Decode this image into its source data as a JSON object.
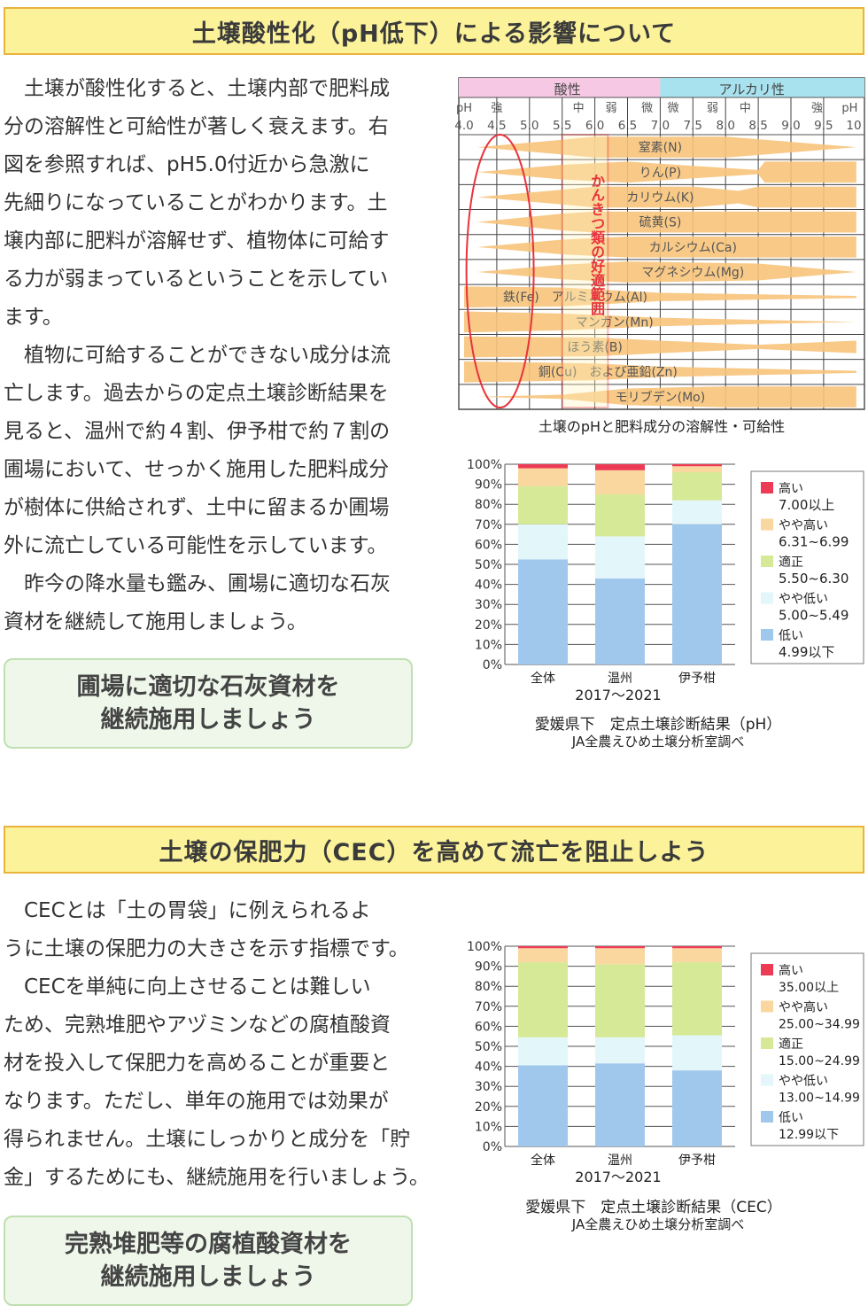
{
  "section1": {
    "title": "土壌酸性化（pH低下）による影響について",
    "paragraphs": [
      [
        "　土壌が酸性化すると、土壌内部で肥料成",
        "分の溶解性と可給性が著しく衰えます。右",
        "図を参照すれば、pH5.0付近から急激に",
        "先細りになっていることがわかります。土",
        "壌内部に肥料が溶解せず、植物体に可給す",
        "る力が弱まっているということを示してい",
        "ます。"
      ],
      [
        "　植物に可給することができない成分は流",
        "亡します。過去からの定点土壌診断結果を",
        "見ると、温州で約４割、伊予柑で約７割の",
        "圃場において、せっかく施用した肥料成分",
        "が樹体に供給されず、土中に留まるか圃場",
        "外に流亡している可能性を示しています。"
      ],
      [
        "　昨今の降水量も鑑み、圃場に適切な石灰",
        "資材を継続して施用しましょう。"
      ]
    ],
    "callout": [
      "圃場に適切な石灰資材を",
      "継続施用しましょう"
    ]
  },
  "ph_diagram": {
    "acid_label": "酸性",
    "alkali_label": "アルカリ性",
    "strength_labels": [
      "pH",
      "強",
      "中",
      "弱",
      "微",
      "微",
      "弱",
      "中",
      "強",
      "pH"
    ],
    "ph_ticks": [
      "4.0",
      "4.5",
      "5.0",
      "5.5",
      "6.0",
      "6.5",
      "7.0",
      "7.5",
      "8.0",
      "8.5",
      "9.0",
      "9.5",
      "10"
    ],
    "nutrients": [
      "窒素(N)",
      "りん(P)",
      "カリウム(K)",
      "硫黄(S)",
      "カルシウム(Ca)",
      "マグネシウム(Mg)",
      "鉄(Fe)　アルミニウム(Al)",
      "マンガン(Mn)",
      "ほう素(B)",
      "銅(Cu)　および亜鉛(Zn)",
      "モリブデン(Mo)"
    ],
    "optimal_label": "かんきつ類の好適範囲",
    "caption": "土壌のpHと肥料成分の溶解性・可給性",
    "colors": {
      "band": "#f7c37a",
      "acid": "#f6c8e4",
      "alkali": "#a9e2ef",
      "highlight": "#e8333c"
    }
  },
  "chart_data": [
    {
      "type": "bar",
      "stacked": true,
      "categories": [
        "全体",
        "温州",
        "伊予柑"
      ],
      "xlabel": "2017～2021",
      "ylim": [
        0,
        100
      ],
      "yticks": [
        "0%",
        "10%",
        "20%",
        "30%",
        "40%",
        "50%",
        "60%",
        "70%",
        "80%",
        "90%",
        "100%"
      ],
      "series": [
        {
          "name": "低い",
          "range": "4.99以下",
          "color": "#9fc8ec",
          "values": [
            52.5,
            43,
            70
          ]
        },
        {
          "name": "やや低い",
          "range": "5.00~5.49",
          "color": "#e3f6fa",
          "values": [
            17.5,
            21,
            12
          ]
        },
        {
          "name": "適正",
          "range": "5.50~6.30",
          "color": "#d6e996",
          "values": [
            19,
            21,
            14
          ]
        },
        {
          "name": "やや高い",
          "range": "6.31~6.99",
          "color": "#f9d79e",
          "values": [
            9,
            12,
            3
          ]
        },
        {
          "name": "高い",
          "range": "7.00以上",
          "color": "#ee3b55",
          "values": [
            2,
            3,
            1
          ]
        }
      ],
      "legend": "right",
      "title": "愛媛県下　定点土壌診断結果（pH）",
      "subtitle": "JA全農えひめ土壌分析室調べ"
    },
    {
      "type": "bar",
      "stacked": true,
      "categories": [
        "全体",
        "温州",
        "伊予柑"
      ],
      "xlabel": "2017～2021",
      "ylim": [
        0,
        100
      ],
      "yticks": [
        "0%",
        "10%",
        "20%",
        "30%",
        "40%",
        "50%",
        "60%",
        "70%",
        "80%",
        "90%",
        "100%"
      ],
      "series": [
        {
          "name": "低い",
          "range": "12.99以下",
          "color": "#9fc8ec",
          "values": [
            40.5,
            41.5,
            38
          ]
        },
        {
          "name": "やや低い",
          "range": "13.00~14.99",
          "color": "#e3f6fa",
          "values": [
            14,
            13,
            17.5
          ]
        },
        {
          "name": "適正",
          "range": "15.00~24.99",
          "color": "#d6e996",
          "values": [
            37.5,
            36.5,
            36.5
          ]
        },
        {
          "name": "やや高い",
          "range": "25.00~34.99",
          "color": "#f9d79e",
          "values": [
            7,
            8,
            7
          ]
        },
        {
          "name": "高い",
          "range": "35.00以上",
          "color": "#ee3b55",
          "values": [
            1,
            1,
            1
          ]
        }
      ],
      "legend": "right",
      "title": "愛媛県下　定点土壌診断結果（CEC）",
      "subtitle": "JA全農えひめ土壌分析室調べ"
    }
  ],
  "section2": {
    "title": "土壌の保肥力（CEC）を高めて流亡を阻止しよう",
    "paragraphs": [
      [
        "　CECとは「土の胃袋」に例えられるよ",
        "うに土壌の保肥力の大きさを示す指標です。"
      ],
      [
        "　CECを単純に向上させることは難しい",
        "ため、完熟堆肥やアヅミンなどの腐植酸資",
        "材を投入して保肥力を高めることが重要と",
        "なります。ただし、単年の施用では効果が",
        "得られません。土壌にしっかりと成分を「貯",
        "金」するためにも、継続施用を行いましょう。"
      ]
    ],
    "callout": [
      "完熟堆肥等の腐植酸資材を",
      "継続施用しましょう"
    ]
  }
}
